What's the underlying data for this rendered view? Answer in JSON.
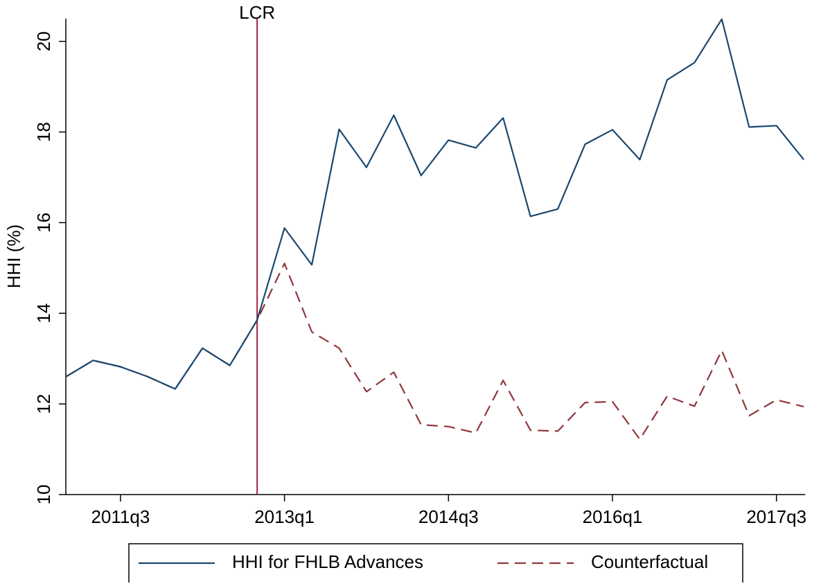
{
  "chart_data": {
    "type": "line",
    "y_label": "HHI (%)",
    "categories": [
      null,
      null,
      "2011q3",
      null,
      null,
      null,
      null,
      null,
      "2013q1",
      null,
      null,
      null,
      null,
      null,
      "2014q3",
      null,
      null,
      null,
      null,
      null,
      "2016q1",
      null,
      null,
      null,
      null,
      null,
      "2017q3",
      null
    ],
    "series": [
      {
        "name": "HHI for FHLB Advances",
        "color": "#1a476f",
        "dash": "solid",
        "values": [
          12.6,
          12.96,
          12.82,
          12.6,
          12.33,
          13.23,
          12.85,
          13.85,
          15.88,
          15.07,
          18.06,
          17.22,
          18.37,
          17.04,
          17.82,
          17.65,
          18.31,
          16.14,
          16.3,
          17.73,
          18.05,
          17.39,
          19.15,
          19.53,
          20.49,
          18.11,
          18.14,
          17.39
        ]
      },
      {
        "name": "Counterfactual",
        "color": "#90353b",
        "dash": "dashed",
        "values": [
          12.6,
          12.96,
          12.82,
          12.6,
          12.33,
          13.23,
          12.85,
          13.85,
          15.1,
          13.59,
          13.23,
          12.27,
          12.7,
          11.54,
          11.5,
          11.36,
          12.52,
          11.42,
          11.4,
          12.03,
          12.05,
          11.22,
          12.17,
          11.95,
          13.18,
          11.74,
          12.09,
          11.94
        ]
      }
    ],
    "vline": {
      "label": "LCR",
      "category_index": 7,
      "color": "#a3203f"
    },
    "ylim": [
      10,
      20.5
    ],
    "yticks": [
      10,
      12,
      14,
      16,
      18,
      20
    ],
    "grid": false,
    "legend": "bottom"
  }
}
